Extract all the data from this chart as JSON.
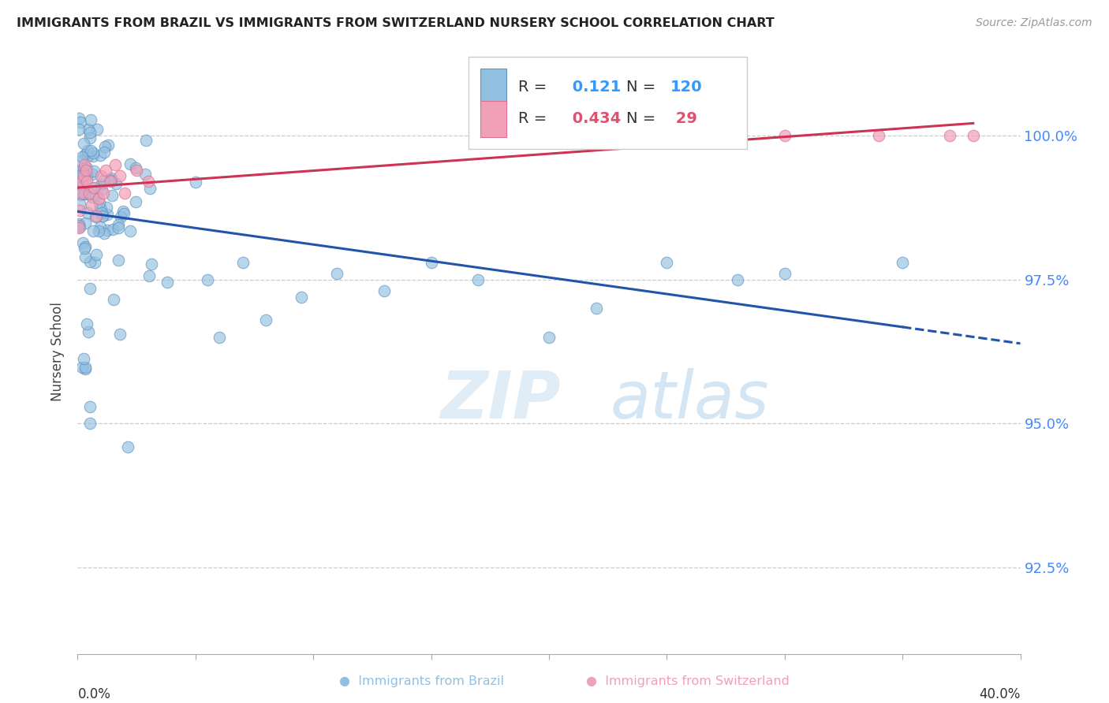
{
  "title": "IMMIGRANTS FROM BRAZIL VS IMMIGRANTS FROM SWITZERLAND NURSERY SCHOOL CORRELATION CHART",
  "source": "Source: ZipAtlas.com",
  "ylabel": "Nursery School",
  "ytick_values": [
    92.5,
    95.0,
    97.5,
    100.0
  ],
  "xmin": 0.0,
  "xmax": 40.0,
  "ymin": 91.0,
  "ymax": 101.5,
  "legend_blue_r": "0.121",
  "legend_blue_n": "120",
  "legend_pink_r": "0.434",
  "legend_pink_n": "29",
  "blue_color": "#92c0e0",
  "pink_color": "#f0a0b8",
  "trend_blue_color": "#2255aa",
  "trend_pink_color": "#cc3355",
  "blue_marker_edge": "#6090c0",
  "pink_marker_edge": "#e07090"
}
